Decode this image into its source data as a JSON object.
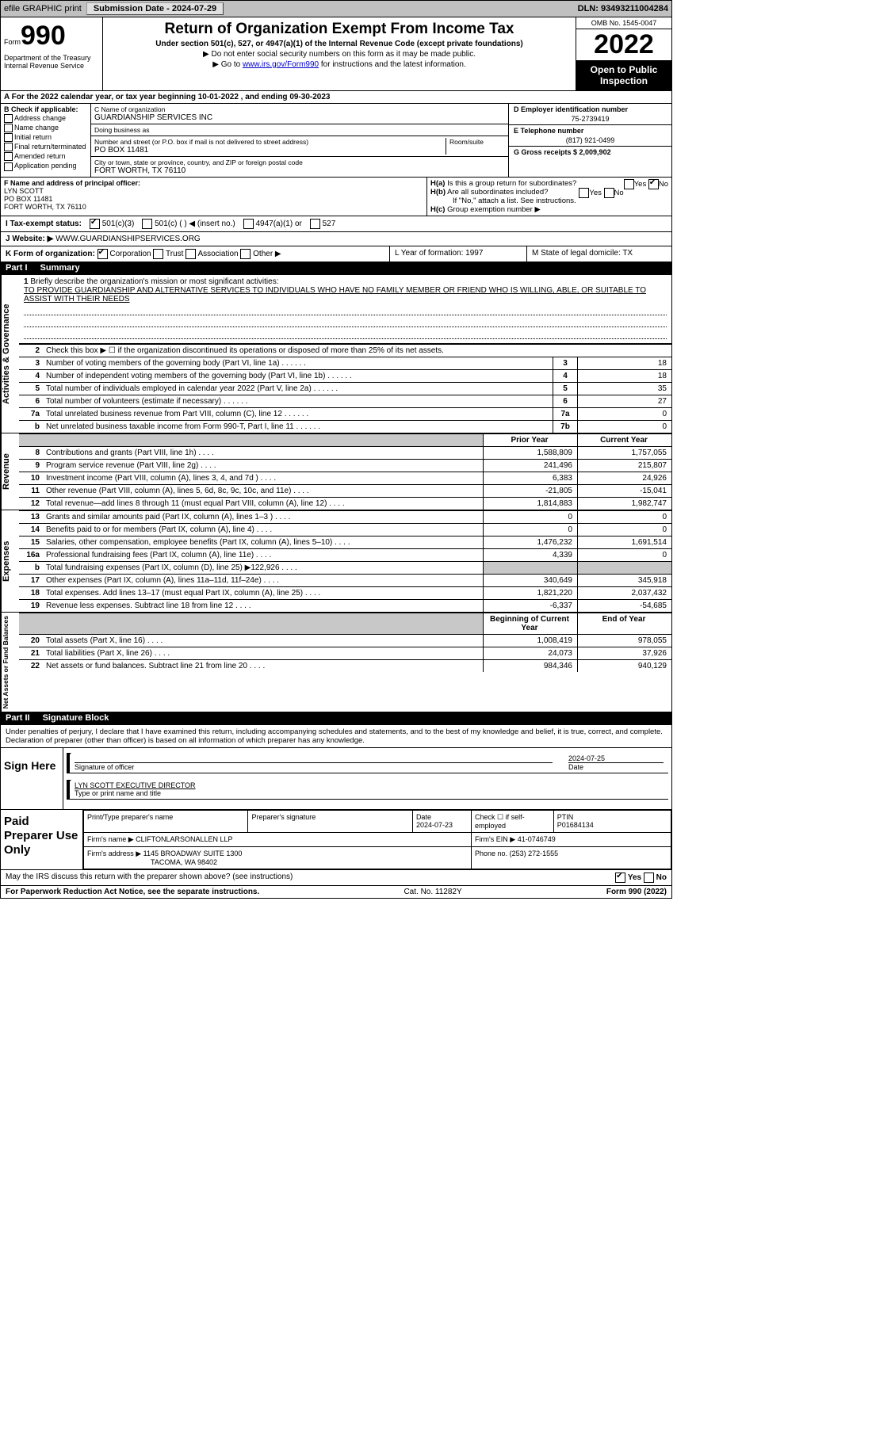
{
  "topbar": {
    "efile": "efile GRAPHIC print",
    "submission_label": "Submission Date - 2024-07-29",
    "dln_label": "DLN: 93493211004284"
  },
  "header": {
    "form_word": "Form",
    "form_num": "990",
    "dept": "Department of the Treasury\nInternal Revenue Service",
    "title": "Return of Organization Exempt From Income Tax",
    "subtitle": "Under section 501(c), 527, or 4947(a)(1) of the Internal Revenue Code (except private foundations)",
    "note1": "▶ Do not enter social security numbers on this form as it may be made public.",
    "note2_pre": "▶ Go to ",
    "note2_link": "www.irs.gov/Form990",
    "note2_post": " for instructions and the latest information.",
    "omb": "OMB No. 1545-0047",
    "year": "2022",
    "otp": "Open to Public Inspection"
  },
  "rowA": "A For the 2022 calendar year, or tax year beginning 10-01-2022    , and ending 09-30-2023",
  "checkB": {
    "title": "B Check if applicable:",
    "items": [
      "Address change",
      "Name change",
      "Initial return",
      "Final return/terminated",
      "Amended return",
      "Application pending"
    ]
  },
  "blockC": {
    "name_lbl": "C Name of organization",
    "name": "GUARDIANSHIP SERVICES INC",
    "dba_lbl": "Doing business as",
    "dba": "",
    "street_lbl": "Number and street (or P.O. box if mail is not delivered to street address)",
    "room_lbl": "Room/suite",
    "street": "PO BOX 11481",
    "city_lbl": "City or town, state or province, country, and ZIP or foreign postal code",
    "city": "FORT WORTH, TX   76110"
  },
  "blockD": {
    "ein_lbl": "D Employer identification number",
    "ein": "75-2739419",
    "phone_lbl": "E Telephone number",
    "phone": "(817) 921-0499",
    "gross_lbl": "G Gross receipts $ 2,009,902"
  },
  "blockF": {
    "lbl": "F Name and address of principal officer:",
    "name": "LYN SCOTT",
    "addr1": "PO BOX 11481",
    "addr2": "FORT WORTH, TX   76110"
  },
  "blockH": {
    "ha": "Is this a group return for subordinates?",
    "hb": "Are all subordinates included?",
    "hb_note": "If \"No,\" attach a list. See instructions.",
    "hc": "Group exemption number ▶"
  },
  "rowI": {
    "lbl": "I   Tax-exempt status:",
    "o1": "501(c)(3)",
    "o2": "501(c) (   ) ◀ (insert no.)",
    "o3": "4947(a)(1) or",
    "o4": "527"
  },
  "rowJ": {
    "lbl": "J   Website: ▶",
    "val": "WWW.GUARDIANSHIPSERVICES.ORG"
  },
  "rowK": {
    "k": "K Form of organization:",
    "ko": [
      "Corporation",
      "Trust",
      "Association",
      "Other ▶"
    ],
    "l": "L Year of formation: 1997",
    "m": "M State of legal domicile: TX"
  },
  "part1": {
    "label": "Part I",
    "title": "Summary"
  },
  "mission": {
    "q": "Briefly describe the organization's mission or most significant activities:",
    "text": "TO PROVIDE GUARDIANSHIP AND ALTERNATIVE SERVICES TO INDIVIDUALS WHO HAVE NO FAMILY MEMBER OR FRIEND WHO IS WILLING, ABLE, OR SUITABLE TO ASSIST WITH THEIR NEEDS"
  },
  "line2": "Check this box ▶ ☐ if the organization discontinued its operations or disposed of more than 25% of its net assets.",
  "lines_top": [
    {
      "n": "3",
      "t": "Number of voting members of the governing body (Part VI, line 1a)",
      "box": "3",
      "v": "18"
    },
    {
      "n": "4",
      "t": "Number of independent voting members of the governing body (Part VI, line 1b)",
      "box": "4",
      "v": "18"
    },
    {
      "n": "5",
      "t": "Total number of individuals employed in calendar year 2022 (Part V, line 2a)",
      "box": "5",
      "v": "35"
    },
    {
      "n": "6",
      "t": "Total number of volunteers (estimate if necessary)",
      "box": "6",
      "v": "27"
    },
    {
      "n": "7a",
      "t": "Total unrelated business revenue from Part VIII, column (C), line 12",
      "box": "7a",
      "v": "0"
    },
    {
      "n": "b",
      "t": "Net unrelated business taxable income from Form 990-T, Part I, line 11",
      "box": "7b",
      "v": "0"
    }
  ],
  "colhdr_prior": "Prior Year",
  "colhdr_curr": "Current Year",
  "revenue": [
    {
      "n": "8",
      "t": "Contributions and grants (Part VIII, line 1h)",
      "p": "1,588,809",
      "c": "1,757,055"
    },
    {
      "n": "9",
      "t": "Program service revenue (Part VIII, line 2g)",
      "p": "241,496",
      "c": "215,807"
    },
    {
      "n": "10",
      "t": "Investment income (Part VIII, column (A), lines 3, 4, and 7d )",
      "p": "6,383",
      "c": "24,926"
    },
    {
      "n": "11",
      "t": "Other revenue (Part VIII, column (A), lines 5, 6d, 8c, 9c, 10c, and 11e)",
      "p": "-21,805",
      "c": "-15,041"
    },
    {
      "n": "12",
      "t": "Total revenue—add lines 8 through 11 (must equal Part VIII, column (A), line 12)",
      "p": "1,814,883",
      "c": "1,982,747"
    }
  ],
  "expenses": [
    {
      "n": "13",
      "t": "Grants and similar amounts paid (Part IX, column (A), lines 1–3 )",
      "p": "0",
      "c": "0"
    },
    {
      "n": "14",
      "t": "Benefits paid to or for members (Part IX, column (A), line 4)",
      "p": "0",
      "c": "0"
    },
    {
      "n": "15",
      "t": "Salaries, other compensation, employee benefits (Part IX, column (A), lines 5–10)",
      "p": "1,476,232",
      "c": "1,691,514"
    },
    {
      "n": "16a",
      "t": "Professional fundraising fees (Part IX, column (A), line 11e)",
      "p": "4,339",
      "c": "0"
    },
    {
      "n": "b",
      "t": "Total fundraising expenses (Part IX, column (D), line 25) ▶122,926",
      "p": "",
      "c": "",
      "grey": true
    },
    {
      "n": "17",
      "t": "Other expenses (Part IX, column (A), lines 11a–11d, 11f–24e)",
      "p": "340,649",
      "c": "345,918"
    },
    {
      "n": "18",
      "t": "Total expenses. Add lines 13–17 (must equal Part IX, column (A), line 25)",
      "p": "1,821,220",
      "c": "2,037,432"
    },
    {
      "n": "19",
      "t": "Revenue less expenses. Subtract line 18 from line 12",
      "p": "-6,337",
      "c": "-54,685"
    }
  ],
  "colhdr_beg": "Beginning of Current Year",
  "colhdr_end": "End of Year",
  "netassets": [
    {
      "n": "20",
      "t": "Total assets (Part X, line 16)",
      "p": "1,008,419",
      "c": "978,055"
    },
    {
      "n": "21",
      "t": "Total liabilities (Part X, line 26)",
      "p": "24,073",
      "c": "37,926"
    },
    {
      "n": "22",
      "t": "Net assets or fund balances. Subtract line 21 from line 20",
      "p": "984,346",
      "c": "940,129"
    }
  ],
  "part2": {
    "label": "Part II",
    "title": "Signature Block"
  },
  "pen": "Under penalties of perjury, I declare that I have examined this return, including accompanying schedules and statements, and to the best of my knowledge and belief, it is true, correct, and complete. Declaration of preparer (other than officer) is based on all information of which preparer has any knowledge.",
  "sign": {
    "label": "Sign Here",
    "sig_lbl": "Signature of officer",
    "date": "2024-07-25",
    "date_lbl": "Date",
    "name": "LYN SCOTT EXECUTIVE DIRECTOR",
    "name_lbl": "Type or print name and title"
  },
  "paid": {
    "label": "Paid Preparer Use Only",
    "h1": "Print/Type preparer's name",
    "h2": "Preparer's signature",
    "h3_lbl": "Date",
    "h3": "2024-07-23",
    "h4": "Check ☐ if self-employed",
    "h5_lbl": "PTIN",
    "h5": "P01684134",
    "firm_lbl": "Firm's name    ▶",
    "firm": "CLIFTONLARSONALLEN LLP",
    "ein_lbl": "Firm's EIN ▶",
    "ein": "41-0746749",
    "addr_lbl": "Firm's address ▶",
    "addr1": "1145 BROADWAY SUITE 1300",
    "addr2": "TACOMA, WA   98402",
    "phone_lbl": "Phone no.",
    "phone": "(253) 272-1555"
  },
  "foot": {
    "q": "May the IRS discuss this return with the preparer shown above? (see instructions)",
    "yes": "Yes",
    "no": "No"
  },
  "bottom": {
    "l": "For Paperwork Reduction Act Notice, see the separate instructions.",
    "m": "Cat. No. 11282Y",
    "r": "Form 990 (2022)"
  },
  "vtabs": {
    "ag": "Activities & Governance",
    "rev": "Revenue",
    "exp": "Expenses",
    "na": "Net Assets or Fund Balances"
  }
}
